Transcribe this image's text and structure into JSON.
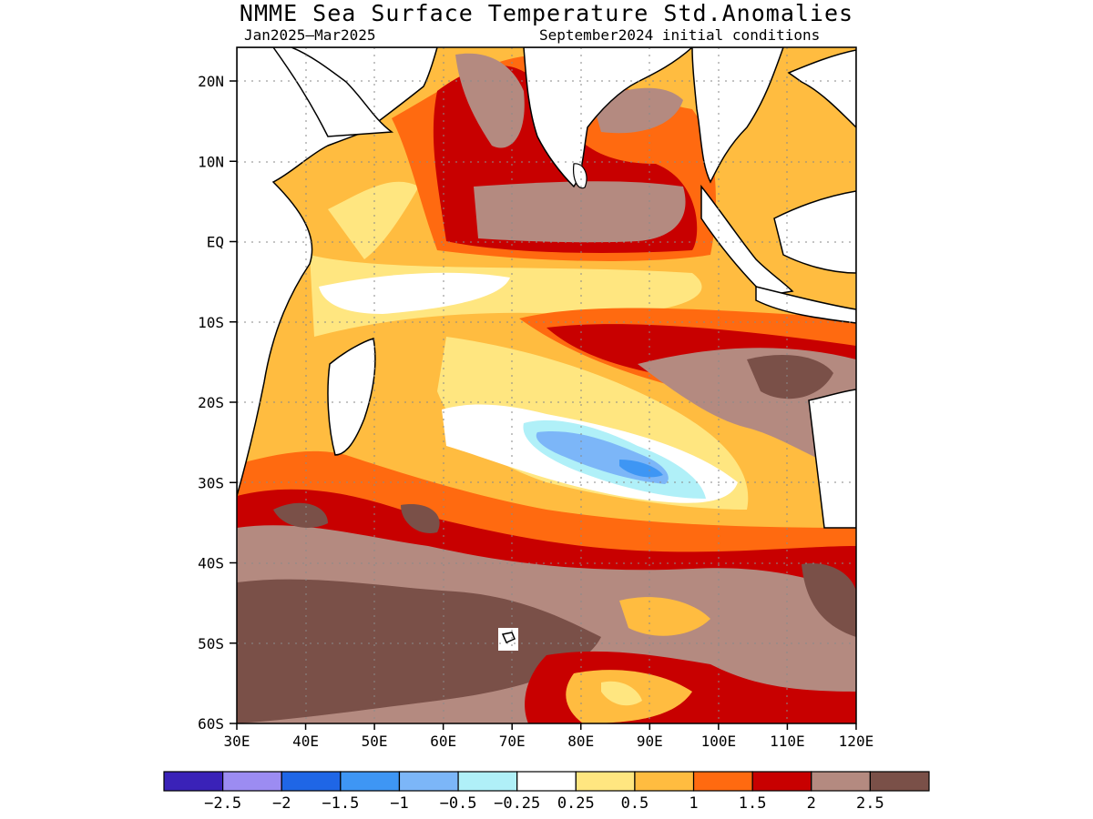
{
  "title": "NMME Sea Surface Temperature Std.Anomalies",
  "period": "Jan2025–Mar2025",
  "initial_conditions": "September2024 initial conditions",
  "lat_labels": [
    "20N",
    "10N",
    "EQ",
    "10S",
    "20S",
    "30S",
    "40S",
    "50S",
    "60S"
  ],
  "lon_labels": [
    "30E",
    "40E",
    "50E",
    "60E",
    "70E",
    "80E",
    "90E",
    "100E",
    "110E",
    "120E"
  ],
  "colorbar": {
    "colors": [
      "#3a22b8",
      "#9c8cf2",
      "#1f66e6",
      "#3e96f4",
      "#7cb6f8",
      "#b0f0f8",
      "#ffffff",
      "#ffe680",
      "#ffbc40",
      "#ff6a10",
      "#c80000",
      "#b48a80",
      "#7a5048"
    ],
    "labels": [
      "−2.5",
      "−2",
      "−1.5",
      "−1",
      "−0.5",
      "−0.25",
      "0.25",
      "0.5",
      "1",
      "1.5",
      "2",
      "2.5"
    ]
  },
  "chart_data": {
    "type": "heatmap",
    "variable": "Sea Surface Temperature Std.Anomalies",
    "lon_range": [
      30,
      120
    ],
    "lat_range": [
      -60,
      24
    ],
    "contour_levels": [
      -2.5,
      -2,
      -1.5,
      -1,
      -0.5,
      -0.25,
      0.25,
      0.5,
      1,
      1.5,
      2,
      2.5
    ],
    "grid": "dotted"
  }
}
